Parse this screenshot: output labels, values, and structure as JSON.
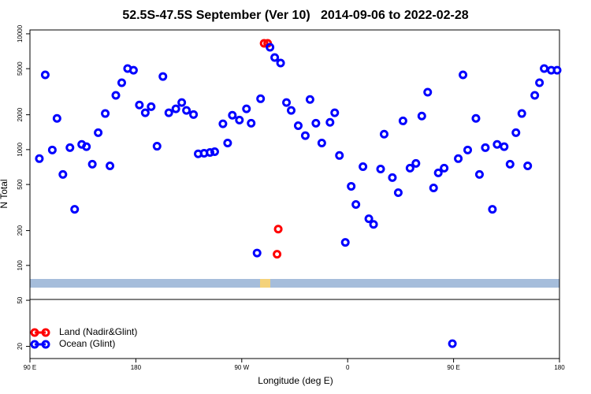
{
  "chart_data": {
    "type": "scatter",
    "title": "52.5S-47.5S September (Ver 10)   2014-09-06 to 2022-02-28",
    "x_label": "Longitude (deg E)",
    "y_label": "N Total",
    "xlim": [
      90,
      540
    ],
    "ylim": [
      15.7,
      10800
    ],
    "log_y": true,
    "legend": "bottom-left",
    "xticks": [
      {
        "value": 90,
        "label": "90 E"
      },
      180,
      {
        "value": 270,
        "label": "90 W"
      },
      {
        "value": 360,
        "label": "0"
      },
      {
        "value": 450,
        "label": "90 E"
      },
      {
        "value": 540,
        "label": "180"
      }
    ],
    "yticks": [
      20,
      50,
      100,
      200,
      500,
      1000,
      2000,
      5000,
      10000
    ],
    "series": [
      {
        "name": "Land (Nadir&Glint)",
        "color": "#ff0000",
        "x": [
          289,
          292,
          301,
          300
        ],
        "values": [
          8280,
          8280,
          206,
          125
        ]
      },
      {
        "name": "Ocean (Glint)",
        "color": "#0000ff",
        "x": [
          98,
          103,
          109,
          113,
          118,
          124,
          128,
          134,
          138,
          143,
          148,
          154,
          158,
          163,
          168,
          173,
          178,
          183,
          188,
          193,
          198,
          203,
          208,
          214,
          219,
          223,
          229,
          233,
          238,
          243,
          247,
          254,
          258,
          262,
          268,
          274,
          278,
          283,
          286,
          294,
          298,
          303,
          308,
          312,
          318,
          324,
          328,
          333,
          338,
          345,
          349,
          353,
          358,
          363,
          367,
          373,
          378,
          382,
          388,
          391,
          398,
          403,
          407,
          413,
          418,
          423,
          428,
          433,
          437,
          442,
          449,
          454,
          458,
          462,
          469,
          472,
          477,
          483,
          487,
          493,
          498,
          503,
          508,
          513,
          519,
          523,
          527,
          533,
          538
        ],
        "values": [
          836,
          4420,
          993,
          1860,
          610,
          1040,
          305,
          1110,
          1060,
          748,
          1400,
          2050,
          724,
          2940,
          3780,
          5010,
          4850,
          2430,
          2080,
          2350,
          1070,
          4280,
          2080,
          2250,
          2550,
          2180,
          2010,
          920,
          930,
          945,
          960,
          1670,
          1140,
          1980,
          1800,
          2250,
          1690,
          128,
          2750,
          7650,
          6240,
          5590,
          2550,
          2180,
          1610,
          1320,
          2710,
          1690,
          1140,
          1720,
          2080,
          890,
          158,
          482,
          336,
          713,
          253,
          226,
          680,
          1360,
          573,
          425,
          1770,
          692,
          760,
          1950,
          3130,
          467,
          630,
          692,
          21.1,
          836,
          4420,
          993,
          1860,
          610,
          1040,
          305,
          1110,
          1060,
          748,
          1400,
          2050,
          724,
          2940,
          3780,
          5010,
          4850,
          4850
        ]
      }
    ]
  }
}
